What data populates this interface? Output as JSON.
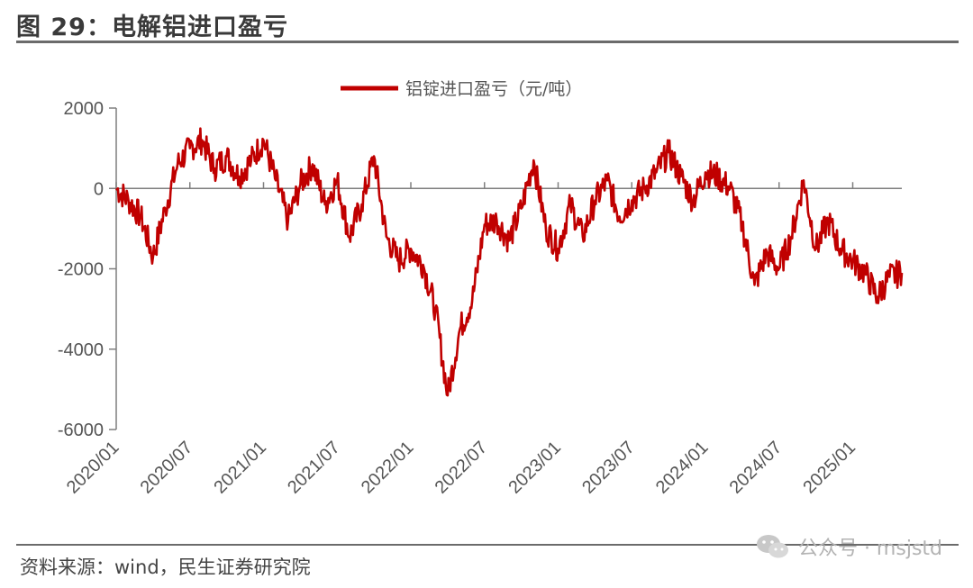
{
  "header": {
    "title": "图 29：电解铝进口盈亏"
  },
  "footer": {
    "source": "资料来源：wind，民生证券研究院",
    "watermark": "公众号 · msjstd"
  },
  "colors": {
    "series": "#c00000",
    "axis": "#7f7f7f",
    "text": "#555555"
  },
  "chart_data": {
    "type": "line",
    "title": "",
    "xlabel": "",
    "ylabel": "",
    "ylim": [
      -6000,
      2000
    ],
    "yticks": [
      "2000",
      "0",
      "-2000",
      "-4000",
      "-6000"
    ],
    "yticks_values": [
      2000,
      0,
      -2000,
      -4000,
      -6000
    ],
    "xticks": [
      "2020/01",
      "2020/07",
      "2021/01",
      "2021/07",
      "2022/01",
      "2022/07",
      "2023/01",
      "2023/07",
      "2024/01",
      "2024/07",
      "2025/01"
    ],
    "xlim": [
      "2020/01",
      "2025/05"
    ],
    "grid": false,
    "legend": "top-center",
    "series": [
      {
        "name": "铝锭进口盈亏（元/吨）",
        "points": [
          [
            "2020/01",
            0
          ],
          [
            "2020/02",
            -300
          ],
          [
            "2020/03",
            -700
          ],
          [
            "2020/04",
            -1700
          ],
          [
            "2020/05",
            -500
          ],
          [
            "2020/06",
            600
          ],
          [
            "2020/07",
            1000
          ],
          [
            "2020/08",
            1200
          ],
          [
            "2020/09",
            500
          ],
          [
            "2020/10",
            800
          ],
          [
            "2020/11",
            300
          ],
          [
            "2020/12",
            700
          ],
          [
            "2021/01",
            1200
          ],
          [
            "2021/02",
            200
          ],
          [
            "2021/03",
            -800
          ],
          [
            "2021/04",
            100
          ],
          [
            "2021/05",
            600
          ],
          [
            "2021/06",
            -400
          ],
          [
            "2021/07",
            200
          ],
          [
            "2021/08",
            -1200
          ],
          [
            "2021/09",
            -400
          ],
          [
            "2021/10",
            800
          ],
          [
            "2021/11",
            -1200
          ],
          [
            "2021/12",
            -1800
          ],
          [
            "2022/01",
            -1500
          ],
          [
            "2022/02",
            -1900
          ],
          [
            "2022/03",
            -3000
          ],
          [
            "2022/04",
            -5150
          ],
          [
            "2022/05",
            -3500
          ],
          [
            "2022/06",
            -2800
          ],
          [
            "2022/07",
            -900
          ],
          [
            "2022/08",
            -800
          ],
          [
            "2022/09",
            -1300
          ],
          [
            "2022/10",
            -500
          ],
          [
            "2022/11",
            700
          ],
          [
            "2022/12",
            -1000
          ],
          [
            "2023/01",
            -1500
          ],
          [
            "2023/02",
            -400
          ],
          [
            "2023/03",
            -1200
          ],
          [
            "2023/04",
            -300
          ],
          [
            "2023/05",
            200
          ],
          [
            "2023/06",
            -700
          ],
          [
            "2023/07",
            -300
          ],
          [
            "2023/08",
            0
          ],
          [
            "2023/09",
            400
          ],
          [
            "2023/10",
            900
          ],
          [
            "2023/11",
            300
          ],
          [
            "2023/12",
            -300
          ],
          [
            "2024/01",
            400
          ],
          [
            "2024/02",
            300
          ],
          [
            "2024/03",
            0
          ],
          [
            "2024/04",
            -900
          ],
          [
            "2024/05",
            -2400
          ],
          [
            "2024/06",
            -1600
          ],
          [
            "2024/07",
            -2000
          ],
          [
            "2024/08",
            -1200
          ],
          [
            "2024/09",
            200
          ],
          [
            "2024/10",
            -1500
          ],
          [
            "2024/11",
            -800
          ],
          [
            "2024/12",
            -1500
          ],
          [
            "2025/01",
            -1800
          ],
          [
            "2025/02",
            -2100
          ],
          [
            "2025/03",
            -2700
          ],
          [
            "2025/04",
            -2200
          ],
          [
            "2025/05",
            -2100
          ]
        ]
      }
    ]
  }
}
